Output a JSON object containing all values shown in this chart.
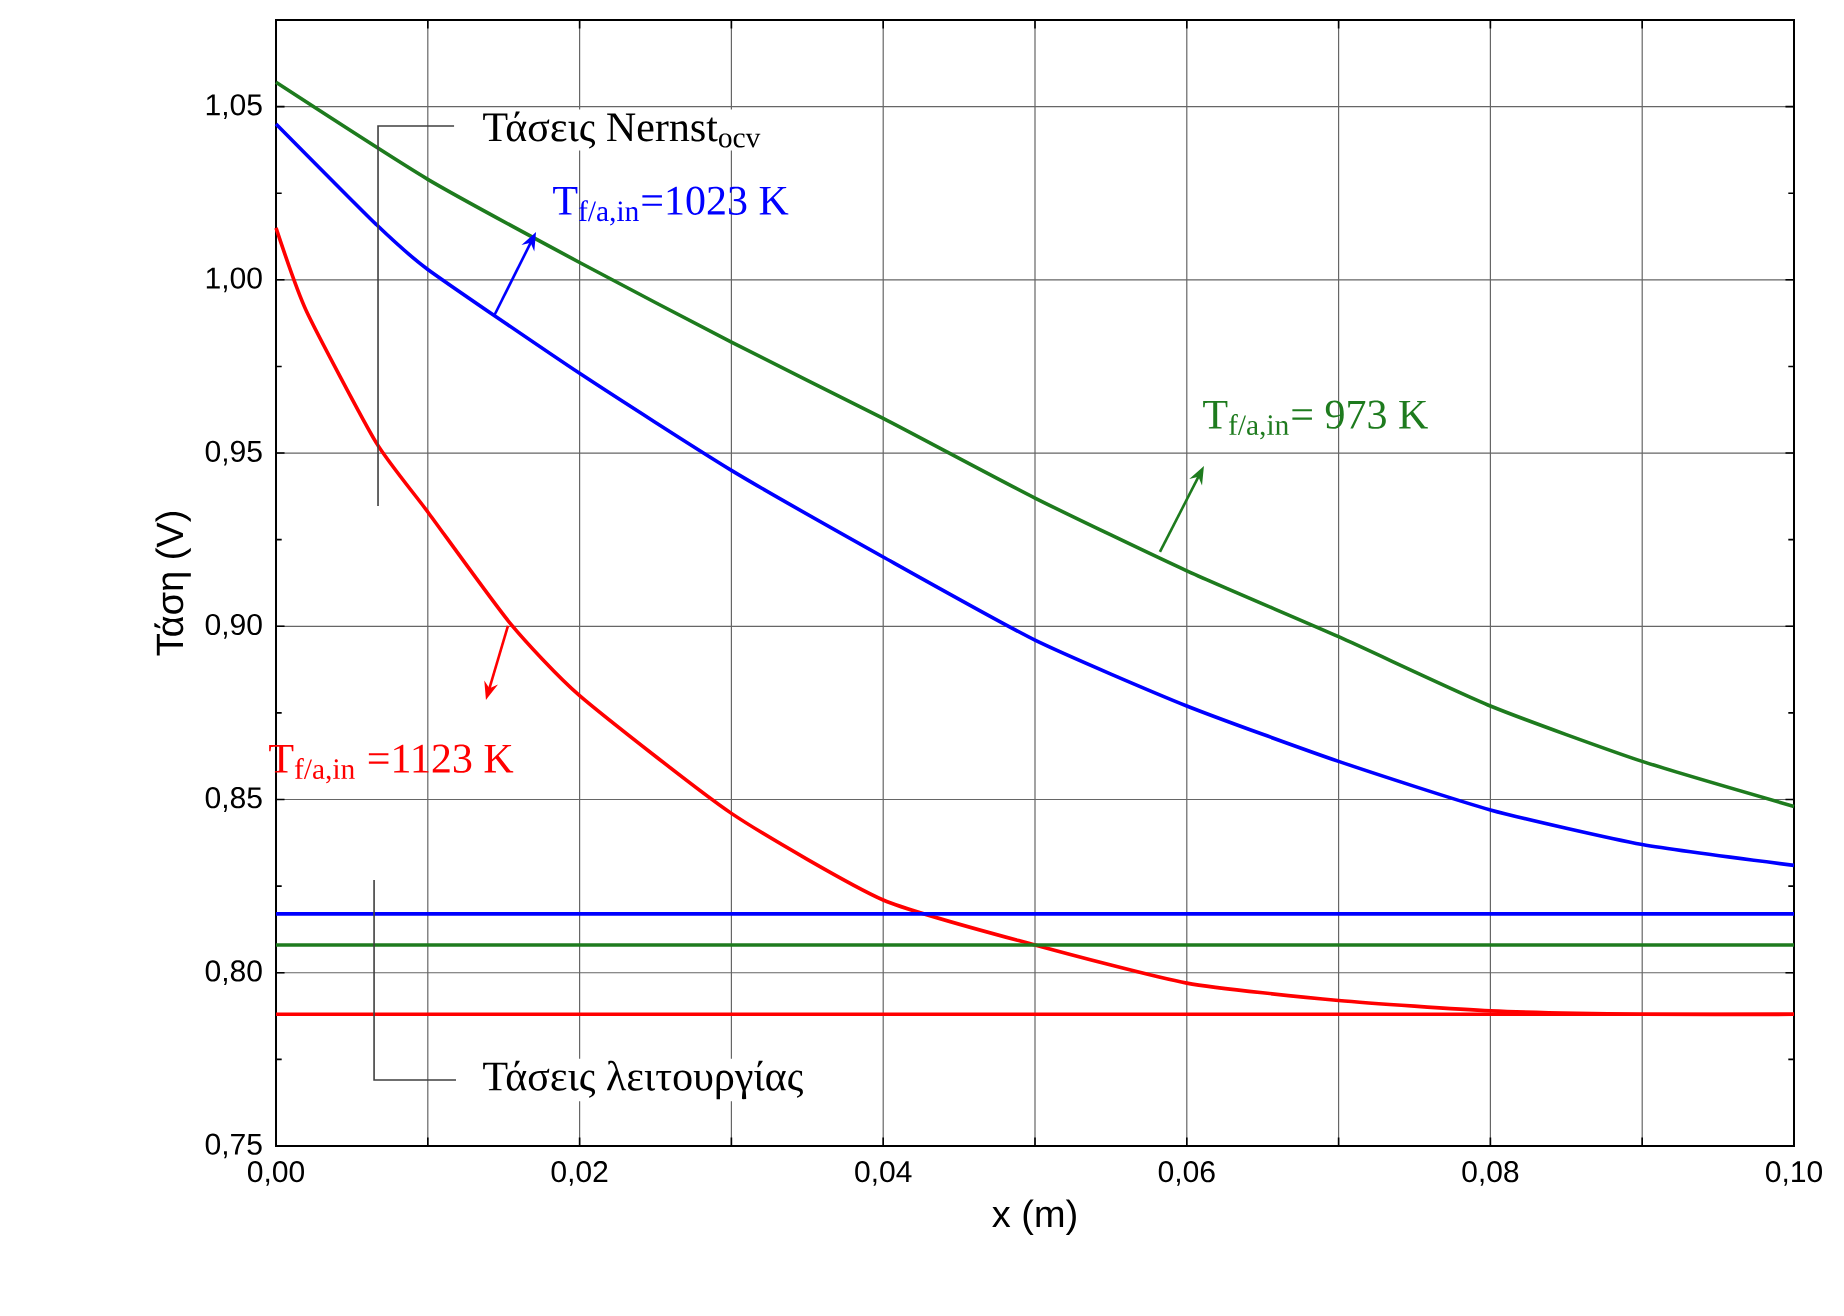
{
  "chart_data": {
    "type": "line",
    "xlabel": "x (m)",
    "ylabel": "Τάση  (V)",
    "xlim": [
      0,
      0.1
    ],
    "ylim": [
      0.75,
      1.075
    ],
    "xticks": [
      {
        "value": 0,
        "label": "0,00"
      },
      {
        "value": 0.01,
        "label": null
      },
      {
        "value": 0.02,
        "label": "0,02"
      },
      {
        "value": 0.03,
        "label": null
      },
      {
        "value": 0.04,
        "label": "0,04"
      },
      {
        "value": 0.05,
        "label": null
      },
      {
        "value": 0.06,
        "label": "0,06"
      },
      {
        "value": 0.07,
        "label": null
      },
      {
        "value": 0.08,
        "label": "0,08"
      },
      {
        "value": 0.09,
        "label": null
      },
      {
        "value": 0.1,
        "label": "0,10"
      }
    ],
    "yticks": [
      {
        "value": 0.75,
        "label": "0,75"
      },
      {
        "value": 0.8,
        "label": "0,80"
      },
      {
        "value": 0.85,
        "label": "0,85"
      },
      {
        "value": 0.9,
        "label": "0,90"
      },
      {
        "value": 0.95,
        "label": "0,95"
      },
      {
        "value": 1.0,
        "label": "1,00"
      },
      {
        "value": 1.05,
        "label": "1,05"
      }
    ],
    "grid": true,
    "marker": "none",
    "line_style": "solid",
    "x": [
      0,
      0.01,
      0.02,
      0.03,
      0.04,
      0.05,
      0.06,
      0.07,
      0.08,
      0.09,
      0.1
    ],
    "series": [
      {
        "color": "#1e7b1e",
        "values": [
          1.057,
          1.029,
          1.005,
          0.982,
          0.96,
          0.937,
          0.916,
          0.897,
          0.877,
          0.861,
          0.848
        ]
      },
      {
        "color": "#0000ff",
        "x": [
          0,
          0.0066,
          0.01,
          0.02,
          0.03,
          0.04,
          0.05,
          0.06,
          0.07,
          0.08,
          0.09,
          0.1
        ],
        "values": [
          1.045,
          1.016,
          1.003,
          0.973,
          0.945,
          0.92,
          0.896,
          0.877,
          0.861,
          0.847,
          0.837,
          0.831
        ]
      },
      {
        "color": "#ff0000",
        "x": [
          0,
          0.002,
          0.0066,
          0.01,
          0.0154,
          0.02,
          0.03,
          0.04,
          0.05,
          0.06,
          0.07,
          0.08,
          0.09,
          0.1
        ],
        "values": [
          1.015,
          0.991,
          0.953,
          0.933,
          0.901,
          0.88,
          0.846,
          0.821,
          0.808,
          0.797,
          0.792,
          0.789,
          0.788,
          0.788
        ]
      },
      {
        "color": "#0000ff",
        "x": [
          0,
          0.1
        ],
        "values": [
          0.817,
          0.817
        ]
      },
      {
        "color": "#1e7b1e",
        "x": [
          0,
          0.1
        ],
        "values": [
          0.808,
          0.808
        ]
      },
      {
        "color": "#ff0000",
        "x": [
          0,
          0.1
        ],
        "values": [
          0.788,
          0.788
        ]
      }
    ],
    "annotations": [
      "Τάσεις Nernst$_{ocv}$",
      "T$_{f/a,in}$=1023 K",
      "T$_{f/a,in}$= 973 K",
      "T$_{f/a,in}$ =1123 K",
      "Τάσεις λειτουργίας"
    ]
  }
}
